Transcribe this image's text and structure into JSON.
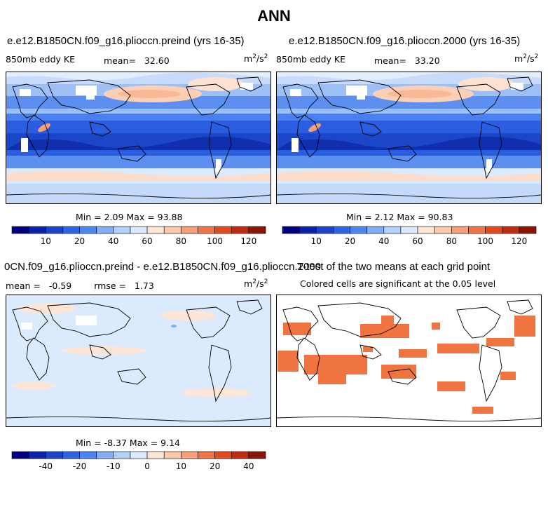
{
  "page": {
    "title": "ANN"
  },
  "panels": [
    {
      "id": "preind",
      "title": "e.e12.B1850CN.f09_g16.plioccn.preind (yrs 16-35)",
      "variable": "850mb eddy KE",
      "stat_label": "mean=",
      "stat_value": "32.60",
      "units_base": "m",
      "units_sup1": "2",
      "units_mid": "/s",
      "units_sup2": "2",
      "minmax": "Min =   2.09  Max =  93.88"
    },
    {
      "id": "p2000",
      "title": "e.e12.B1850CN.f09_g16.plioccn.2000 (yrs 16-35)",
      "variable": "850mb eddy KE",
      "stat_label": "mean=",
      "stat_value": "33.20",
      "units_base": "m",
      "units_sup1": "2",
      "units_mid": "/s",
      "units_sup2": "2",
      "minmax": "Min =   2.12  Max =  90.83"
    },
    {
      "id": "diff",
      "title": "0CN.f09_g16.plioccn.preind - e.e12.B1850CN.f09_g16.plioccn.2000",
      "stat_label": "mean =",
      "stat_value": "-0.59",
      "rmse_label": "rmse =",
      "rmse_value": "1.73",
      "units_base": "m",
      "units_sup1": "2",
      "units_mid": "/s",
      "units_sup2": "2",
      "minmax": "Min =  -8.37  Max =   9.14"
    },
    {
      "id": "ttest",
      "title": "T-test of the two means at each grid point",
      "subtitle": "Colored cells are significant at the 0.05 level"
    }
  ],
  "colorbars": {
    "abs": {
      "colors": [
        "#000080",
        "#0a23a8",
        "#1d44c8",
        "#2d62e0",
        "#4a86ee",
        "#82adf5",
        "#b4d0fa",
        "#dbe9fd",
        "#fde6d6",
        "#fbc8aa",
        "#f6a07a",
        "#f07448",
        "#e24a20",
        "#c02c10",
        "#8a1606"
      ],
      "tick_labels": [
        "10",
        "20",
        "40",
        "60",
        "80",
        "100",
        "120"
      ],
      "tick_positions": [
        2,
        4,
        6,
        8,
        10,
        12,
        14
      ]
    },
    "diff": {
      "colors": [
        "#000080",
        "#0a23a8",
        "#1d44c8",
        "#2d62e0",
        "#4a86ee",
        "#82adf5",
        "#b4d0fa",
        "#dbe9fd",
        "#fde6d6",
        "#fbc8aa",
        "#f6a07a",
        "#f07448",
        "#e24a20",
        "#c02c10",
        "#8a1606"
      ],
      "tick_labels": [
        "-40",
        "-20",
        "-10",
        "0",
        "10",
        "20",
        "40"
      ],
      "tick_positions": [
        2,
        4,
        6,
        8,
        10,
        12,
        14
      ]
    }
  },
  "colors": {
    "significant": "#f07440",
    "land_outline": "#000000"
  }
}
